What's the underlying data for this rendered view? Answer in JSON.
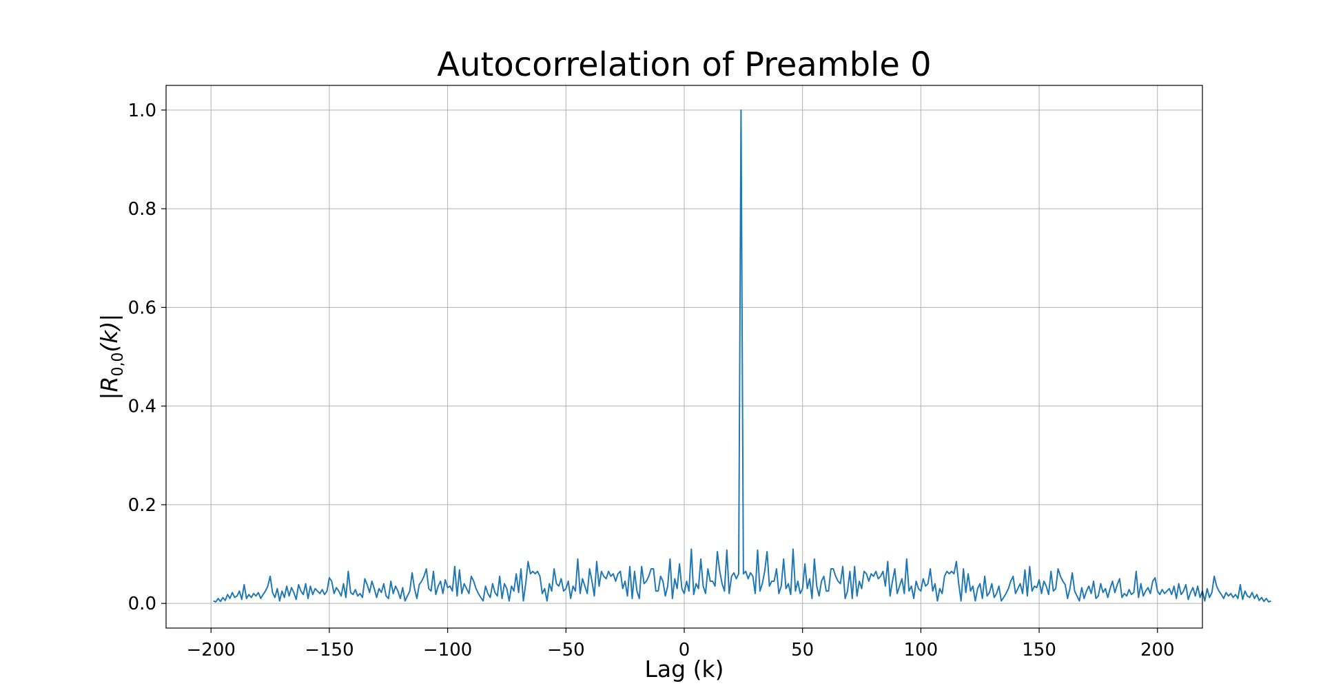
{
  "chart_data": {
    "type": "line",
    "title": "Autocorrelation of Preamble 0",
    "xlabel": "Lag (k)",
    "ylabel": "|R0,0(k)|",
    "ylabel_parts": {
      "bar_left": "|",
      "var": "R",
      "sub": "0,0",
      "arg": "(k)",
      "bar_right": "|"
    },
    "xlim": [
      -219,
      219
    ],
    "ylim": [
      -0.05,
      1.05
    ],
    "xticks": [
      -200,
      -150,
      -100,
      -50,
      0,
      50,
      100,
      150,
      200
    ],
    "xtick_labels": [
      "−200",
      "−150",
      "−100",
      "−50",
      "0",
      "50",
      "100",
      "150",
      "200"
    ],
    "yticks": [
      0.0,
      0.2,
      0.4,
      0.6,
      0.8,
      1.0
    ],
    "ytick_labels": [
      "0.0",
      "0.2",
      "0.4",
      "0.6",
      "0.8",
      "1.0"
    ],
    "grid": true,
    "legend": "none",
    "color": "#1f77b4",
    "series": [
      {
        "x_start": -199,
        "x_step": 1,
        "y": [
          0.005,
          0.003,
          0.01,
          0.004,
          0.012,
          0.006,
          0.018,
          0.01,
          0.022,
          0.012,
          0.015,
          0.025,
          0.008,
          0.038,
          0.01,
          0.018,
          0.012,
          0.02,
          0.015,
          0.022,
          0.01,
          0.018,
          0.025,
          0.035,
          0.055,
          0.022,
          0.012,
          0.03,
          0.005,
          0.025,
          0.012,
          0.035,
          0.015,
          0.032,
          0.022,
          0.008,
          0.038,
          0.025,
          0.018,
          0.04,
          0.01,
          0.035,
          0.018,
          0.03,
          0.025,
          0.02,
          0.028,
          0.018,
          0.025,
          0.052,
          0.045,
          0.02,
          0.032,
          0.025,
          0.015,
          0.04,
          0.012,
          0.065,
          0.022,
          0.018,
          0.028,
          0.015,
          0.02,
          0.012,
          0.05,
          0.038,
          0.022,
          0.045,
          0.03,
          0.012,
          0.03,
          0.022,
          0.04,
          0.015,
          0.01,
          0.045,
          0.02,
          0.035,
          0.025,
          0.01,
          0.032,
          0.005,
          0.015,
          0.025,
          0.062,
          0.03,
          0.01,
          0.038,
          0.045,
          0.055,
          0.07,
          0.03,
          0.025,
          0.065,
          0.018,
          0.035,
          0.045,
          0.02,
          0.048,
          0.032,
          0.035,
          0.025,
          0.075,
          0.015,
          0.068,
          0.02,
          0.04,
          0.03,
          0.02,
          0.055,
          0.045,
          0.03,
          0.02,
          0.012,
          0.005,
          0.035,
          0.02,
          0.012,
          0.04,
          0.022,
          0.015,
          0.055,
          0.01,
          0.04,
          0.03,
          0.005,
          0.035,
          0.025,
          0.06,
          0.022,
          0.07,
          0.005,
          0.04,
          0.085,
          0.06,
          0.065,
          0.06,
          0.065,
          0.055,
          0.02,
          0.03,
          0.005,
          0.04,
          0.025,
          0.07,
          0.04,
          0.035,
          0.05,
          0.025,
          0.03,
          0.045,
          0.01,
          0.035,
          0.025,
          0.09,
          0.02,
          0.05,
          0.035,
          0.02,
          0.07,
          0.045,
          0.015,
          0.085,
          0.035,
          0.065,
          0.055,
          0.05,
          0.065,
          0.055,
          0.06,
          0.045,
          0.06,
          0.065,
          0.03,
          0.045,
          0.015,
          0.075,
          0.01,
          0.065,
          0.025,
          0.01,
          0.075,
          0.04,
          0.045,
          0.055,
          0.07,
          0.07,
          0.025,
          0.025,
          0.055,
          0.045,
          0.015,
          0.035,
          0.09,
          0.01,
          0.05,
          0.03,
          0.08,
          0.03,
          0.02,
          0.045,
          0.025,
          0.11,
          0.018,
          0.04,
          0.03,
          0.09,
          0.035,
          0.02,
          0.07,
          0.045,
          0.045,
          0.035,
          0.105,
          0.065,
          0.04,
          0.025,
          0.108,
          0.02,
          0.055,
          0.062,
          0.05,
          0.06,
          1.0,
          0.06,
          0.065,
          0.05,
          0.062,
          0.055,
          0.02,
          0.108,
          0.025,
          0.04,
          0.065,
          0.105,
          0.035,
          0.045,
          0.045,
          0.07,
          0.02,
          0.035,
          0.09,
          0.03,
          0.04,
          0.018,
          0.11,
          0.025,
          0.045,
          0.02,
          0.03,
          0.08,
          0.03,
          0.05,
          0.01,
          0.09,
          0.035,
          0.015,
          0.045,
          0.055,
          0.025,
          0.025,
          0.07,
          0.07,
          0.055,
          0.045,
          0.04,
          0.075,
          0.01,
          0.025,
          0.065,
          0.01,
          0.075,
          0.015,
          0.045,
          0.03,
          0.065,
          0.06,
          0.045,
          0.06,
          0.055,
          0.065,
          0.05,
          0.055,
          0.065,
          0.035,
          0.085,
          0.015,
          0.045,
          0.07,
          0.02,
          0.035,
          0.05,
          0.02,
          0.09,
          0.025,
          0.035,
          0.01,
          0.045,
          0.03,
          0.025,
          0.05,
          0.035,
          0.04,
          0.07,
          0.025,
          0.04,
          0.005,
          0.03,
          0.02,
          0.055,
          0.065,
          0.06,
          0.065,
          0.06,
          0.085,
          0.04,
          0.005,
          0.07,
          0.022,
          0.06,
          0.025,
          0.035,
          0.005,
          0.03,
          0.04,
          0.01,
          0.055,
          0.015,
          0.022,
          0.04,
          0.012,
          0.02,
          0.035,
          0.005,
          0.012,
          0.02,
          0.03,
          0.045,
          0.055,
          0.02,
          0.03,
          0.04,
          0.02,
          0.068,
          0.015,
          0.075,
          0.025,
          0.035,
          0.032,
          0.048,
          0.02,
          0.045,
          0.035,
          0.018,
          0.065,
          0.025,
          0.03,
          0.07,
          0.055,
          0.045,
          0.038,
          0.01,
          0.03,
          0.062,
          0.025,
          0.015,
          0.005,
          0.032,
          0.01,
          0.025,
          0.035,
          0.02,
          0.045,
          0.01,
          0.015,
          0.04,
          0.022,
          0.03,
          0.012,
          0.03,
          0.045,
          0.022,
          0.038,
          0.05,
          0.012,
          0.02,
          0.015,
          0.028,
          0.018,
          0.022,
          0.065,
          0.012,
          0.04,
          0.015,
          0.025,
          0.032,
          0.02,
          0.045,
          0.052,
          0.025,
          0.018,
          0.028,
          0.02,
          0.025,
          0.03,
          0.018,
          0.035,
          0.01,
          0.04,
          0.018,
          0.025,
          0.038,
          0.008,
          0.022,
          0.032,
          0.015,
          0.035,
          0.012,
          0.025,
          0.005,
          0.03,
          0.012,
          0.022,
          0.055,
          0.035,
          0.025,
          0.018,
          0.01,
          0.022,
          0.015,
          0.02,
          0.012,
          0.018,
          0.01,
          0.038,
          0.008,
          0.025,
          0.015,
          0.012,
          0.022,
          0.01,
          0.018,
          0.006,
          0.012,
          0.004,
          0.01,
          0.003,
          0.005
        ]
      }
    ]
  }
}
